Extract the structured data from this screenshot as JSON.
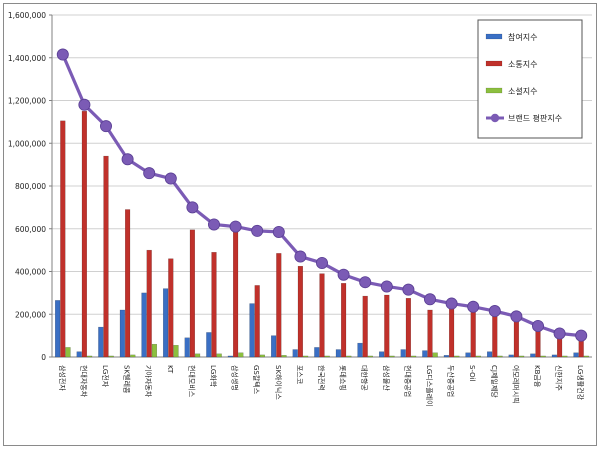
{
  "chart_data": {
    "type": "bar",
    "title": "",
    "xlabel": "",
    "ylabel": "",
    "ylim": [
      0,
      1600000
    ],
    "ytick_step": 200000,
    "yticks": [
      "0",
      "200,000",
      "400,000",
      "600,000",
      "800,000",
      "1,000,000",
      "1,200,000",
      "1,400,000",
      "1,600,000"
    ],
    "grid": true,
    "legend_position": "top-right",
    "categories": [
      "삼성전자",
      "현대자동차",
      "LG전자",
      "SK텔레콤",
      "기아자동차",
      "KT",
      "현대모비스",
      "LG화학",
      "삼성생명",
      "GS칼텍스",
      "SK하이닉스",
      "포스코",
      "한국전력",
      "롯데쇼핑",
      "대한항공",
      "삼성물산",
      "현대중공업",
      "LG디스플레이",
      "두산중공업",
      "S-Oil",
      "CJ제일제당",
      "아모레퍼시픽",
      "KB금융",
      "신한지주",
      "LG생활건강"
    ],
    "series": [
      {
        "name": "참여지수",
        "kind": "bar",
        "color": "#3a6fc4",
        "values": [
          265000,
          25000,
          140000,
          220000,
          300000,
          320000,
          90000,
          115000,
          5000,
          250000,
          100000,
          35000,
          45000,
          35000,
          65000,
          25000,
          35000,
          30000,
          8000,
          20000,
          25000,
          10000,
          15000,
          10000,
          20000
        ]
      },
      {
        "name": "소통지수",
        "kind": "bar",
        "color": "#c0312b",
        "values": [
          1105000,
          1150000,
          940000,
          690000,
          500000,
          460000,
          595000,
          490000,
          585000,
          335000,
          485000,
          425000,
          390000,
          345000,
          285000,
          290000,
          275000,
          220000,
          235000,
          210000,
          200000,
          170000,
          135000,
          125000,
          90000
        ]
      },
      {
        "name": "소셜지수",
        "kind": "bar",
        "color": "#8cbf3f",
        "values": [
          45000,
          5000,
          5000,
          10000,
          60000,
          55000,
          15000,
          15000,
          20000,
          10000,
          8000,
          5000,
          5000,
          5000,
          5000,
          5000,
          5000,
          20000,
          5000,
          5000,
          5000,
          5000,
          5000,
          5000,
          5000
        ]
      },
      {
        "name": "브랜드 평판지수",
        "kind": "line",
        "color": "#7b5bb5",
        "values": [
          1415000,
          1180000,
          1080000,
          925000,
          860000,
          835000,
          700000,
          620000,
          610000,
          590000,
          585000,
          470000,
          440000,
          385000,
          350000,
          330000,
          315000,
          270000,
          250000,
          235000,
          215000,
          190000,
          145000,
          110000,
          100000
        ]
      }
    ]
  }
}
